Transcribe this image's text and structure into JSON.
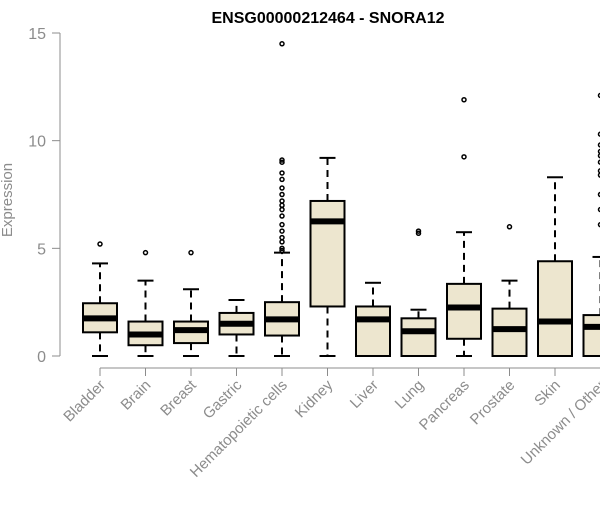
{
  "chart_data": {
    "type": "boxplot",
    "title": "ENSG00000212464 - SNORA12",
    "xlabel": "",
    "ylabel": "Expression",
    "ylim": [
      0,
      15
    ],
    "yticks": [
      0,
      5,
      10,
      15
    ],
    "grid": false,
    "legend": "none",
    "colors": {
      "box_fill": "#ede6cf",
      "box_stroke": "#000000",
      "axis": "#8c8c8c",
      "tick_label": "#8c8c8c",
      "title": "#000000"
    },
    "categories": [
      "Bladder",
      "Brain",
      "Breast",
      "Gastric",
      "Hematopoietic cells",
      "Kidney",
      "Liver",
      "Lung",
      "Pancreas",
      "Prostate",
      "Skin",
      "Unknown / Other"
    ],
    "boxes": [
      {
        "whisker_low": 0.0,
        "q1": 1.1,
        "median": 1.75,
        "q3": 2.45,
        "whisker_high": 4.3,
        "outliers": [
          5.2
        ]
      },
      {
        "whisker_low": 0.0,
        "q1": 0.5,
        "median": 1.0,
        "q3": 1.6,
        "whisker_high": 3.5,
        "outliers": [
          4.8
        ]
      },
      {
        "whisker_low": 0.0,
        "q1": 0.6,
        "median": 1.2,
        "q3": 1.6,
        "whisker_high": 3.1,
        "outliers": [
          4.8
        ]
      },
      {
        "whisker_low": 0.0,
        "q1": 1.0,
        "median": 1.5,
        "q3": 2.0,
        "whisker_high": 2.6,
        "outliers": []
      },
      {
        "whisker_low": 0.0,
        "q1": 0.95,
        "median": 1.7,
        "q3": 2.5,
        "whisker_high": 4.8,
        "outliers": [
          4.9,
          5.0,
          5.3,
          5.5,
          5.8,
          6.1,
          6.5,
          6.8,
          7.0,
          7.2,
          7.5,
          7.8,
          8.2,
          8.5,
          9.0,
          9.1,
          14.5
        ]
      },
      {
        "whisker_low": 0.0,
        "q1": 2.3,
        "median": 6.25,
        "q3": 7.2,
        "whisker_high": 9.2,
        "outliers": []
      },
      {
        "whisker_low": 0.0,
        "q1": 0.0,
        "median": 1.7,
        "q3": 2.3,
        "whisker_high": 3.4,
        "outliers": []
      },
      {
        "whisker_low": 0.0,
        "q1": 0.0,
        "median": 1.15,
        "q3": 1.75,
        "whisker_high": 2.15,
        "outliers": [
          5.7,
          5.8
        ]
      },
      {
        "whisker_low": 0.0,
        "q1": 0.8,
        "median": 2.25,
        "q3": 3.35,
        "whisker_high": 5.75,
        "outliers": [
          9.25,
          11.9
        ]
      },
      {
        "whisker_low": 0.0,
        "q1": 0.0,
        "median": 1.25,
        "q3": 2.2,
        "whisker_high": 3.5,
        "outliers": [
          6.0
        ]
      },
      {
        "whisker_low": 0.0,
        "q1": 0.0,
        "median": 1.6,
        "q3": 4.4,
        "whisker_high": 8.3,
        "outliers": []
      },
      {
        "whisker_low": 0.0,
        "q1": 0.0,
        "median": 1.35,
        "q3": 1.9,
        "whisker_high": 4.6,
        "outliers": [
          6.1,
          6.8,
          7.5,
          8.4,
          8.6,
          9.0,
          9.3,
          9.5,
          9.8,
          10.3,
          12.1
        ]
      }
    ]
  }
}
